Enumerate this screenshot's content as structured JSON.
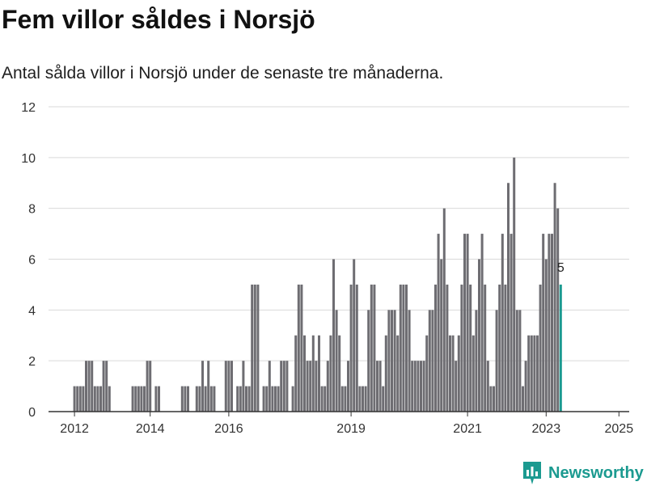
{
  "title": "Fem villor såldes i Norsjö",
  "subtitle": "Antal sålda villor i Norsjö under de senaste tre månaderna.",
  "brand": {
    "name": "Newsworthy",
    "icon": "newsworthy-logo-icon"
  },
  "colors": {
    "bar": "#6e6d72",
    "highlight": "#1b9a90",
    "grid": "#d9d9d9",
    "axis": "#333333"
  },
  "chart_data": {
    "type": "bar",
    "ylim": [
      0,
      12
    ],
    "yticks": [
      0,
      2,
      4,
      6,
      8,
      10,
      12
    ],
    "xticks": [
      "2012",
      "2014",
      "2016",
      "2019",
      "2021",
      "2023",
      "2025"
    ],
    "grid": true,
    "highlight_label": "5",
    "values": [
      1,
      1,
      1,
      1,
      2,
      2,
      2,
      1,
      1,
      1,
      2,
      2,
      1,
      0,
      0,
      0,
      0,
      0,
      0,
      0,
      1,
      1,
      1,
      1,
      1,
      2,
      2,
      0,
      1,
      1,
      0,
      0,
      0,
      0,
      0,
      0,
      0,
      1,
      1,
      1,
      0,
      0,
      1,
      1,
      2,
      1,
      2,
      1,
      1,
      0,
      0,
      0,
      2,
      2,
      2,
      0,
      1,
      1,
      2,
      1,
      1,
      5,
      5,
      5,
      0,
      1,
      1,
      2,
      1,
      1,
      1,
      2,
      2,
      2,
      0,
      1,
      3,
      5,
      5,
      3,
      2,
      2,
      3,
      2,
      3,
      1,
      1,
      2,
      3,
      6,
      4,
      3,
      1,
      1,
      2,
      5,
      6,
      5,
      1,
      1,
      1,
      4,
      5,
      5,
      2,
      2,
      1,
      3,
      4,
      4,
      4,
      3,
      5,
      5,
      5,
      4,
      2,
      2,
      2,
      2,
      2,
      3,
      4,
      4,
      5,
      7,
      6,
      8,
      5,
      3,
      3,
      2,
      3,
      5,
      7,
      7,
      5,
      3,
      4,
      6,
      7,
      5,
      2,
      1,
      1,
      4,
      5,
      7,
      5,
      9,
      7,
      10,
      4,
      4,
      1,
      2,
      3,
      3,
      3,
      3,
      5,
      7,
      6,
      7,
      7,
      9,
      8,
      5
    ]
  }
}
